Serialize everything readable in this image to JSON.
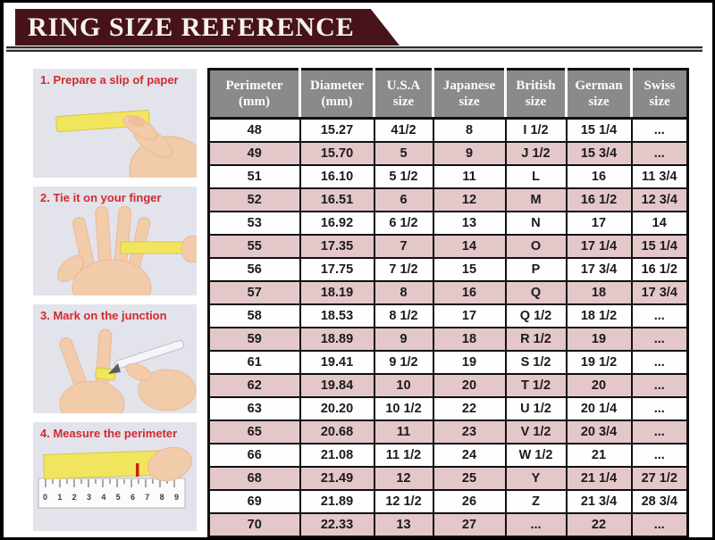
{
  "banner": {
    "title": "RING SIZE REFERENCE"
  },
  "steps": [
    {
      "label": "1. Prepare a slip of paper"
    },
    {
      "label": "2. Tie it on your finger"
    },
    {
      "label": "3. Mark on the junction"
    },
    {
      "label": "4. Measure the perimeter"
    }
  ],
  "ruler_numbers": [
    "0",
    "1",
    "2",
    "3",
    "4",
    "5",
    "6",
    "7",
    "8",
    "9"
  ],
  "chart_data": {
    "type": "table",
    "title": "RING SIZE REFERENCE",
    "columns": [
      "Perimeter (mm)",
      "Diameter (mm)",
      "U.S.A size",
      "Japanese size",
      "British size",
      "German size",
      "Swiss size"
    ],
    "header_lines": [
      [
        "Perimeter",
        "(mm)"
      ],
      [
        "Diameter",
        "(mm)"
      ],
      [
        "U.S.A",
        "size"
      ],
      [
        "Japanese",
        "size"
      ],
      [
        "British",
        "size"
      ],
      [
        "German",
        "size"
      ],
      [
        "Swiss",
        "size"
      ]
    ],
    "rows": [
      [
        "48",
        "15.27",
        "41/2",
        "8",
        "I 1/2",
        "15 1/4",
        "..."
      ],
      [
        "49",
        "15.70",
        "5",
        "9",
        "J 1/2",
        "15 3/4",
        "..."
      ],
      [
        "51",
        "16.10",
        "5 1/2",
        "11",
        "L",
        "16",
        "11 3/4"
      ],
      [
        "52",
        "16.51",
        "6",
        "12",
        "M",
        "16 1/2",
        "12 3/4"
      ],
      [
        "53",
        "16.92",
        "6 1/2",
        "13",
        "N",
        "17",
        "14"
      ],
      [
        "55",
        "17.35",
        "7",
        "14",
        "O",
        "17 1/4",
        "15 1/4"
      ],
      [
        "56",
        "17.75",
        "7 1/2",
        "15",
        "P",
        "17 3/4",
        "16 1/2"
      ],
      [
        "57",
        "18.19",
        "8",
        "16",
        "Q",
        "18",
        "17 3/4"
      ],
      [
        "58",
        "18.53",
        "8 1/2",
        "17",
        "Q 1/2",
        "18 1/2",
        "..."
      ],
      [
        "59",
        "18.89",
        "9",
        "18",
        "R 1/2",
        "19",
        "..."
      ],
      [
        "61",
        "19.41",
        "9 1/2",
        "19",
        "S 1/2",
        "19 1/2",
        "..."
      ],
      [
        "62",
        "19.84",
        "10",
        "20",
        "T 1/2",
        "20",
        "..."
      ],
      [
        "63",
        "20.20",
        "10 1/2",
        "22",
        "U 1/2",
        "20 1/4",
        "..."
      ],
      [
        "65",
        "20.68",
        "11",
        "23",
        "V 1/2",
        "20 3/4",
        "..."
      ],
      [
        "66",
        "21.08",
        "11 1/2",
        "24",
        "W 1/2",
        "21",
        "..."
      ],
      [
        "68",
        "21.49",
        "12",
        "25",
        "Y",
        "21 1/4",
        "27 1/2"
      ],
      [
        "69",
        "21.89",
        "12 1/2",
        "26",
        "Z",
        "21 3/4",
        "28 3/4"
      ],
      [
        "70",
        "22.33",
        "13",
        "27",
        "...",
        "22",
        "..."
      ]
    ]
  },
  "colors": {
    "banner_bg": "#47131a",
    "banner_text": "#f6f2ee",
    "header_bg": "#8a8a8c",
    "row_pink": "#e3c7c9",
    "row_white": "#fefefe",
    "table_border": "#101010",
    "step_title_red": "#d22a2e",
    "photo_bg": "#e2e3eb",
    "paper_yellow": "#f2e55e"
  }
}
